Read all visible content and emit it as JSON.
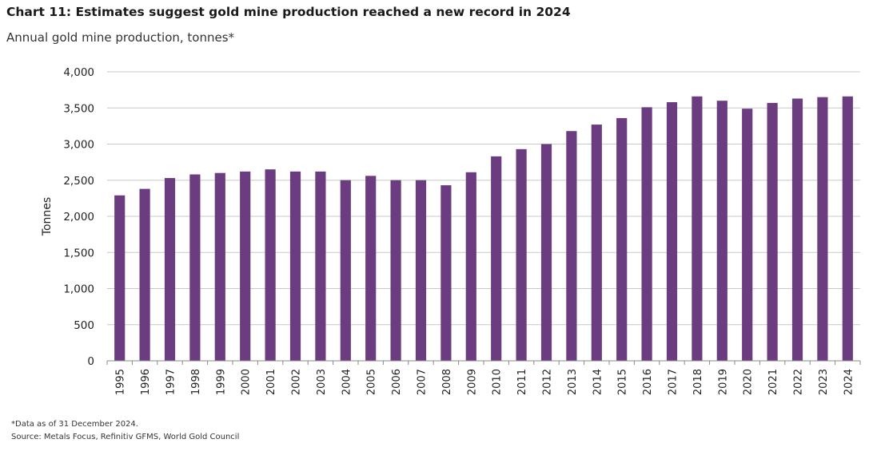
{
  "title": "Chart 11: Estimates suggest gold mine production reached a new record in 2024",
  "subtitle": "Annual gold mine production, tonnes*",
  "footnote": "*Data as of 31 December 2024.",
  "source": "Source: Metals Focus, Refinitiv GFMS, World Gold Council",
  "colors": {
    "bar": "#6b3d80",
    "grid": "#c8c8c8",
    "axis": "#888888"
  },
  "chart_data": {
    "type": "bar",
    "title": "Chart 11: Estimates suggest gold mine production reached a new record in 2024",
    "subtitle": "Annual gold mine production, tonnes*",
    "xlabel": "",
    "ylabel": "Tonnes",
    "ylim": [
      0,
      4000
    ],
    "yticks": [
      0,
      500,
      1000,
      1500,
      2000,
      2500,
      3000,
      3500,
      4000
    ],
    "ytick_labels": [
      "0",
      "500",
      "1,000",
      "1,500",
      "2,000",
      "2,500",
      "3,000",
      "3,500",
      "4,000"
    ],
    "grid": true,
    "legend": "none",
    "categories": [
      "1995",
      "1996",
      "1997",
      "1998",
      "1999",
      "2000",
      "2001",
      "2002",
      "2003",
      "2004",
      "2005",
      "2006",
      "2007",
      "2008",
      "2009",
      "2010",
      "2011",
      "2012",
      "2013",
      "2014",
      "2015",
      "2016",
      "2017",
      "2018",
      "2019",
      "2020",
      "2021",
      "2022",
      "2023",
      "2024"
    ],
    "values": [
      2290,
      2380,
      2530,
      2580,
      2600,
      2620,
      2650,
      2620,
      2620,
      2500,
      2560,
      2500,
      2500,
      2430,
      2610,
      2830,
      2930,
      3000,
      3180,
      3270,
      3360,
      3510,
      3580,
      3660,
      3600,
      3490,
      3570,
      3630,
      3650,
      3660
    ]
  }
}
